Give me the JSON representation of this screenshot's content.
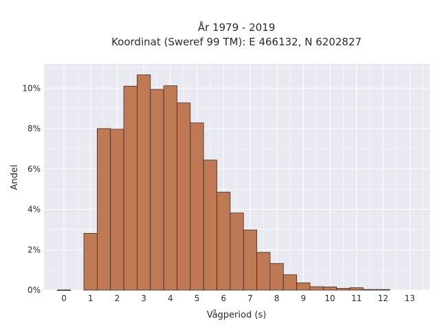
{
  "chart_data": {
    "type": "bar",
    "title_line1": "År 1979 - 2019",
    "title_line2": "Koordinat (Sweref 99 TM): E 466132, N 6202827",
    "xlabel": "Vågperiod (s)",
    "ylabel": "Andel",
    "xlim": [
      -0.75,
      13.75
    ],
    "ylim": [
      0,
      0.112
    ],
    "x_ticks": [
      0,
      1,
      2,
      3,
      4,
      5,
      6,
      7,
      8,
      9,
      10,
      11,
      12,
      13
    ],
    "x_tick_labels": [
      "0",
      "1",
      "2",
      "3",
      "4",
      "5",
      "6",
      "7",
      "8",
      "9",
      "10",
      "11",
      "12",
      "13"
    ],
    "y_ticks": [
      0,
      0.02,
      0.04,
      0.06,
      0.08,
      0.1
    ],
    "y_tick_labels": [
      "0%",
      "2%",
      "4%",
      "6%",
      "8%",
      "10%"
    ],
    "bin_width": 0.5,
    "bin_starts": [
      -0.25,
      0.25,
      0.75,
      1.25,
      1.75,
      2.25,
      2.75,
      3.25,
      3.75,
      4.25,
      4.75,
      5.25,
      5.75,
      6.25,
      6.75,
      7.25,
      7.75,
      8.25,
      8.75,
      9.25,
      9.75,
      10.25,
      10.75,
      11.25,
      11.75,
      12.25,
      12.75
    ],
    "values": [
      0.0001,
      0,
      0.0281,
      0.08,
      0.0797,
      0.101,
      0.1066,
      0.0994,
      0.1012,
      0.0927,
      0.0828,
      0.0644,
      0.0485,
      0.0382,
      0.0298,
      0.0187,
      0.0132,
      0.0076,
      0.0036,
      0.0017,
      0.0016,
      0.0009,
      0.0012,
      0.0003,
      0.0003,
      0,
      0
    ],
    "grid": true,
    "colors": {
      "bar_fill": "#bf7a55",
      "bar_edge": "#3b2a20",
      "plot_background": "#e9e9f2",
      "grid": "#ffffff"
    }
  }
}
